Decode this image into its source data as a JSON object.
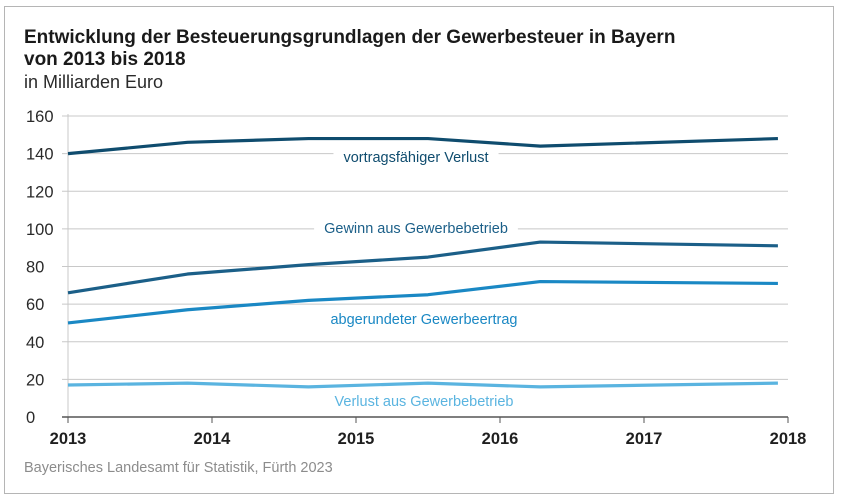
{
  "chart_data": {
    "type": "line",
    "title": "Entwicklung der Besteuerungsgrundlagen der Gewerbesteuer in Bayern von 2013 bis 2018",
    "title_lines": [
      "Entwicklung der Besteuerungsgrundlagen der Gewerbesteuer in Bayern",
      "von 2013 bis 2018"
    ],
    "subtitle": "in Milliarden Euro",
    "xlabel": "",
    "ylabel": "",
    "ylim": [
      0,
      160
    ],
    "xlim": [
      2013,
      2018
    ],
    "yticks": [
      0,
      20,
      40,
      60,
      80,
      100,
      120,
      140,
      160
    ],
    "xticks": [
      "2013",
      "2014",
      "2015",
      "2016",
      "2017",
      "2018"
    ],
    "grid": true,
    "x": [
      2013,
      2013.83,
      2014.67,
      2015.5,
      2016.28,
      2017.93
    ],
    "series": [
      {
        "name": "vortragsfähiger Verlust",
        "color": "#0f4c6e",
        "values": [
          140,
          146,
          148,
          148,
          144,
          148
        ],
        "label_pos": "top-center"
      },
      {
        "name": "Gewinn aus Gewerbebetrieb",
        "color": "#1b5f88",
        "values": [
          66,
          76,
          81,
          85,
          93,
          91
        ],
        "label_pos": "center"
      },
      {
        "name": "abgerundeter Gewerbeertrag",
        "color": "#1a88c4",
        "values": [
          50,
          57,
          62,
          65,
          72,
          71
        ],
        "label_pos": "center"
      },
      {
        "name": "Verlust aus Gewerbebetrieb",
        "color": "#5ab4e0",
        "values": [
          17,
          18,
          16,
          18,
          16,
          18
        ],
        "label_pos": "bottom-center"
      }
    ],
    "legend": "inline labels",
    "source": "Bayerisches Landesamt für Statistik, Fürth 2023"
  }
}
